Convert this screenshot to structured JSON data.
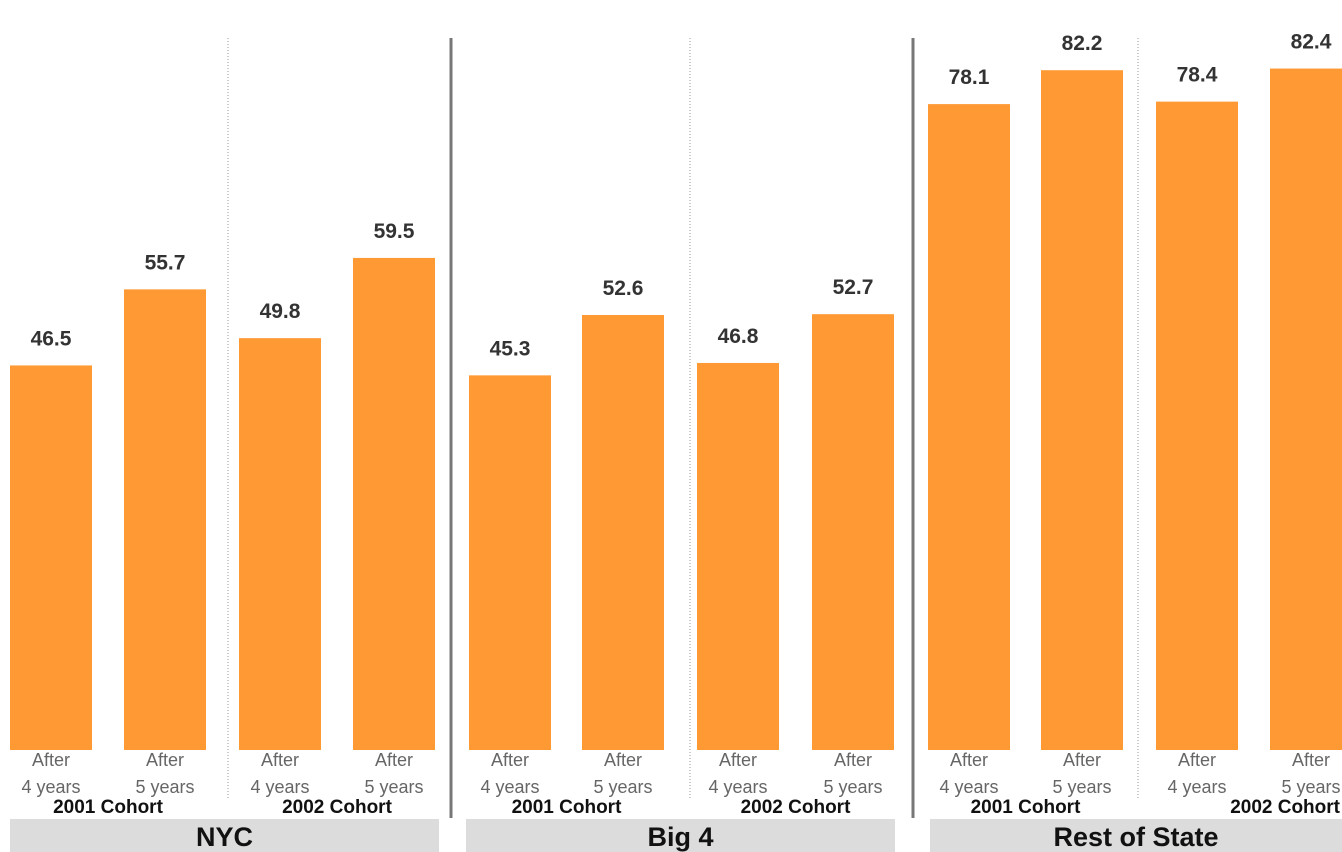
{
  "chart_data": {
    "type": "bar",
    "ylim": [
      0,
      90
    ],
    "grid": false,
    "colors": {
      "bar": "#FF9933",
      "region_band": "#DCDCDC",
      "divider": "#777777",
      "cohort_divider": "#999999"
    },
    "categories": [
      "After 4 years",
      "After 5 years",
      "After 4 years",
      "After 5 years",
      "After 4 years",
      "After 5 years",
      "After 4 years",
      "After 5 years",
      "After 4 years",
      "After 5 years",
      "After 4 years",
      "After 5 years"
    ],
    "tick_lines": [
      [
        "After",
        "4 years"
      ],
      [
        "After",
        "5 years"
      ]
    ],
    "values": [
      46.5,
      55.7,
      49.8,
      59.5,
      45.3,
      52.6,
      46.8,
      52.7,
      78.1,
      82.2,
      78.4,
      82.4
    ],
    "cohorts": [
      "2001 Cohort",
      "2002 Cohort",
      "2001 Cohort",
      "2002 Cohort",
      "2001 Cohort",
      "2002 Cohort"
    ],
    "regions": [
      "NYC",
      "Big 4",
      "Rest of State"
    ]
  }
}
